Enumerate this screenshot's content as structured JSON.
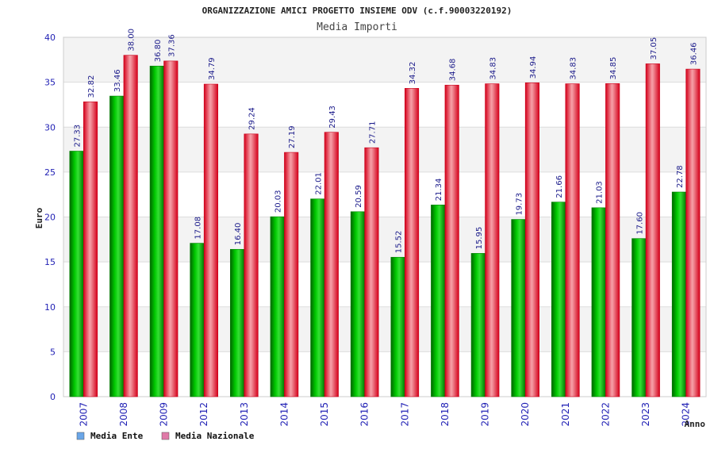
{
  "chart_data": {
    "type": "bar",
    "title": "ORGANIZZAZIONE AMICI PROGETTO INSIEME ODV (c.f.90003220192)",
    "subtitle": "Media Importi",
    "xlabel": "Anno",
    "ylabel": "Euro",
    "ylim": [
      0,
      40
    ],
    "yticks": [
      "0",
      "5",
      "10",
      "15",
      "20",
      "25",
      "30",
      "35",
      "40"
    ],
    "categories": [
      "2007",
      "2008",
      "2009",
      "2012",
      "2013",
      "2014",
      "2015",
      "2016",
      "2017",
      "2018",
      "2019",
      "2020",
      "2021",
      "2022",
      "2023",
      "2024"
    ],
    "series": [
      {
        "name": "Media Ente",
        "color": "#00c000",
        "values": [
          27.33,
          33.46,
          36.8,
          17.08,
          16.4,
          20.03,
          22.01,
          20.59,
          15.52,
          21.34,
          15.95,
          19.73,
          21.66,
          21.03,
          17.6,
          22.78
        ],
        "labels": [
          "27.33",
          "33.46",
          "36.80",
          "17.08",
          "16.40",
          "20.03",
          "22.01",
          "20.59",
          "15.52",
          "21.34",
          "15.95",
          "19.73",
          "21.66",
          "21.03",
          "17.60",
          "22.78"
        ]
      },
      {
        "name": "Media Nazionale",
        "color": "#e8112d",
        "values": [
          32.82,
          38.0,
          37.36,
          34.79,
          29.24,
          27.19,
          29.43,
          27.71,
          34.32,
          34.68,
          34.83,
          34.94,
          34.83,
          34.85,
          37.05,
          36.46
        ],
        "labels": [
          "32.82",
          "38.00",
          "37.36",
          "34.79",
          "29.24",
          "27.19",
          "29.43",
          "27.71",
          "34.32",
          "34.68",
          "34.83",
          "34.94",
          "34.83",
          "34.85",
          "37.05",
          "36.46"
        ]
      }
    ],
    "legend": [
      {
        "label": "Media Ente",
        "swatch": "#6aa6e8"
      },
      {
        "label": "Media Nazionale",
        "swatch": "#e07aa8"
      }
    ],
    "grid": true,
    "legend_position": "bottom-left"
  }
}
